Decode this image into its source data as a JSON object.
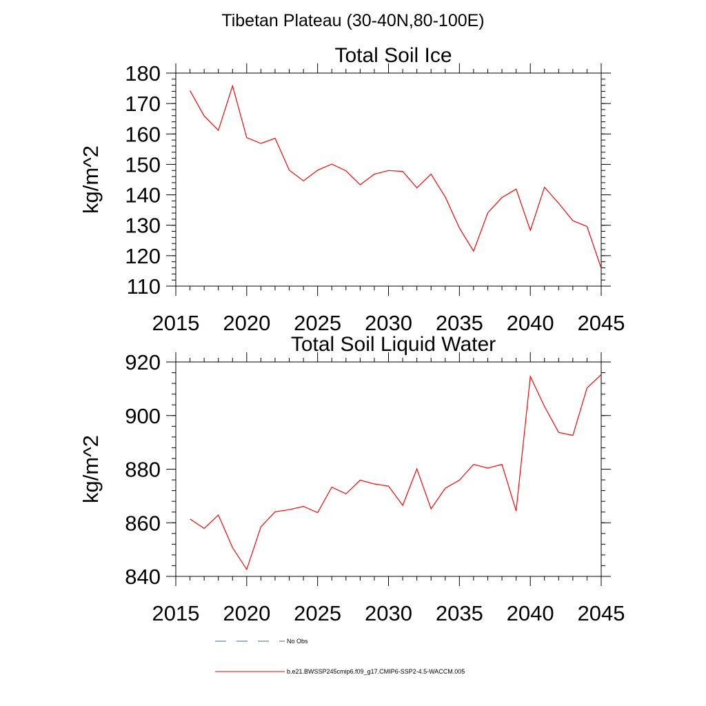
{
  "figure": {
    "suptitle": "Tibetan Plateau (30-40N,80-100E)"
  },
  "chart_data": [
    {
      "type": "line",
      "title": "Total Soil Ice",
      "xlabel": "",
      "ylabel": "kg/m^2",
      "xlim": [
        2015,
        2045
      ],
      "ylim": [
        110,
        180
      ],
      "xticks": [
        2015,
        2020,
        2025,
        2030,
        2035,
        2040,
        2045
      ],
      "yticks": [
        110,
        120,
        130,
        140,
        150,
        160,
        170,
        180
      ],
      "series": [
        {
          "name": "b.e21.BWSSP245cmip6.f09_g17.CMIP6-SSP2-4.5-WACCM.005",
          "color": "#ff0000",
          "x": [
            2016,
            2017,
            2018,
            2019,
            2020,
            2021,
            2022,
            2023,
            2024,
            2025,
            2026,
            2027,
            2028,
            2029,
            2030,
            2031,
            2032,
            2033,
            2034,
            2035,
            2036,
            2037,
            2038,
            2039,
            2040,
            2041,
            2042,
            2043,
            2044,
            2045
          ],
          "y": [
            174.2,
            165.9,
            161.2,
            175.8,
            158.8,
            156.9,
            158.6,
            148.1,
            144.6,
            148.1,
            150.1,
            147.9,
            143.3,
            146.8,
            148.0,
            147.7,
            142.3,
            146.8,
            139.3,
            129.1,
            121.5,
            134.1,
            139.1,
            141.9,
            128.3,
            142.5,
            137.2,
            131.5,
            129.6,
            115.9
          ]
        }
      ]
    },
    {
      "type": "line",
      "title": "Total Soil Liquid Water",
      "xlabel": "",
      "ylabel": "kg/m^2",
      "xlim": [
        2015,
        2045
      ],
      "ylim": [
        840,
        920
      ],
      "xticks": [
        2015,
        2020,
        2025,
        2030,
        2035,
        2040,
        2045
      ],
      "yticks": [
        840,
        860,
        880,
        900,
        920
      ],
      "series": [
        {
          "name": "b.e21.BWSSP245cmip6.f09_g17.CMIP6-SSP2-4.5-WACCM.005",
          "color": "#ff0000",
          "x": [
            2016,
            2017,
            2018,
            2019,
            2020,
            2021,
            2022,
            2023,
            2024,
            2025,
            2026,
            2027,
            2028,
            2029,
            2030,
            2031,
            2032,
            2033,
            2034,
            2035,
            2036,
            2037,
            2038,
            2039,
            2040,
            2041,
            2042,
            2043,
            2044,
            2045
          ],
          "y": [
            861.4,
            857.9,
            862.9,
            850.7,
            842.6,
            858.5,
            864.1,
            864.9,
            866.1,
            863.8,
            873.3,
            870.8,
            875.9,
            874.5,
            873.7,
            866.5,
            880.1,
            865.2,
            872.9,
            875.9,
            881.8,
            880.4,
            881.8,
            864.4,
            914.6,
            903.4,
            893.7,
            892.6,
            910.3,
            915.3
          ]
        }
      ]
    }
  ],
  "legend": {
    "items": [
      {
        "label": "No Obs",
        "style": "dashed",
        "color": "#4f5e8f"
      },
      {
        "label": "b.e21.BWSSP245cmip6.f09_g17.CMIP6-SSP2-4.5-WACCM.005",
        "style": "solid",
        "color": "#ff0000"
      }
    ]
  }
}
